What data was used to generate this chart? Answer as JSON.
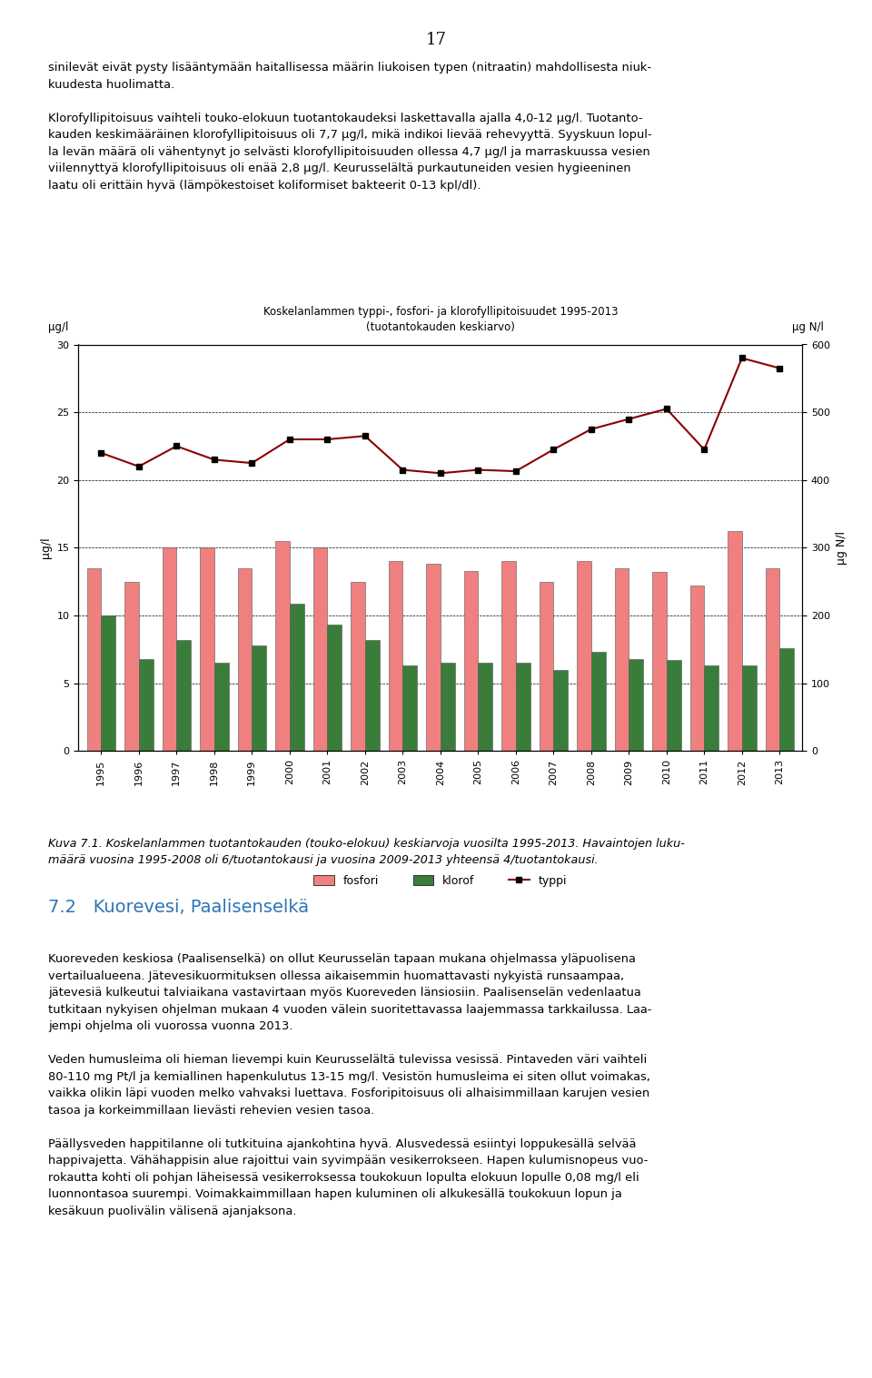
{
  "page_number": "17",
  "top_text_lines": [
    "sinilevät eivät pysty lisääntymään haitallisessa määrin liukoisen typen (nitraatin) mahdollisesta niuk-",
    "kuudesta huolimatta.",
    "",
    "Klorofyllipitoisuus vaihteli touko-elokuun tuotantokaudeksi laskettavalla ajalla 4,0-12 µg/l. Tuotanto-",
    "kauden keskimääräinen klorofyllipitoisuus oli 7,7 µg/l, mikä indikoi lievää rehevyyttä. Syyskuun lopul-",
    "la levän määrä oli vähentynyt jo selvästi klorofyllipitoisuuden ollessa 4,7 µg/l ja marraskuussa vesien",
    "viilennyttyä klorofyllipitoisuus oli enää 2,8 µg/l. Keurusselältä purkautuneiden vesien hygieeninen",
    "laatu oli erittäin hyvä (lämpökestoiset koliformiset bakteerit 0-13 kpl/dl)."
  ],
  "chart_title_line1": "Koskelanlammen typpi-, fosfori- ja klorofyllipitoisuudet 1995-2013",
  "chart_title_line2": "(tuotantokauden keskiarvo)",
  "ylabel_left": "µg/l",
  "ylabel_right": "µg N/l",
  "years": [
    1995,
    1996,
    1997,
    1998,
    1999,
    2000,
    2001,
    2002,
    2003,
    2004,
    2005,
    2006,
    2007,
    2008,
    2009,
    2010,
    2011,
    2012,
    2013
  ],
  "fosfori": [
    13.5,
    12.5,
    15.0,
    15.0,
    13.5,
    15.5,
    15.0,
    12.5,
    14.0,
    13.8,
    13.3,
    14.0,
    12.5,
    14.0,
    13.5,
    13.2,
    12.2,
    16.2,
    13.5
  ],
  "klorof": [
    10.0,
    6.8,
    8.2,
    6.5,
    7.8,
    10.9,
    9.3,
    8.2,
    6.3,
    6.5,
    6.5,
    6.5,
    6.0,
    7.3,
    6.8,
    6.7,
    6.3,
    6.3,
    7.6
  ],
  "typpi": [
    440,
    420,
    450,
    430,
    425,
    460,
    460,
    465,
    415,
    410,
    415,
    413,
    445,
    475,
    490,
    505,
    445,
    580,
    565
  ],
  "fosfori_color": "#F08080",
  "klorof_color": "#3A7D3A",
  "typpi_color": "#8B0000",
  "ylim_left": [
    0,
    30
  ],
  "ylim_right": [
    0,
    600
  ],
  "yticks_left": [
    0,
    5,
    10,
    15,
    20,
    25,
    30
  ],
  "yticks_right": [
    0,
    100,
    200,
    300,
    400,
    500,
    600
  ],
  "caption_line1": "Kuva 7.1. Koskelanlammen tuotantokauden (touko-elokuu) keskiarvoja vuosilta 1995-2013. Havaintojen luku-",
  "caption_line2": "määrä vuosina 1995-2008 oli 6/tuotantokausi ja vuosina 2009-2013 yhteensä 4/tuotantokausi.",
  "section_title": "7.2   Kuorevesi, Paalisenselkä",
  "bottom_text_lines": [
    "Kuoreveden keskiosa (Paalisenselkä) on ollut Keurusselän tapaan mukana ohjelmassa yläpuolisena",
    "vertailualueena. Jätevesikuormituksen ollessa aikaisemmin huomattavasti nykyistä runsaampaa,",
    "jätevesiä kulkeutui talviaikana vastavirtaan myös Kuoreveden länsiosiin. Paalisenselän vedenlaatua",
    "tutkitaan nykyisen ohjelman mukaan 4 vuoden välein suoritettavassa laajemmassa tarkkailussa. Laa-",
    "jempi ohjelma oli vuorossa vuonna 2013.",
    "",
    "Veden humusleima oli hieman lievempi kuin Keurusselältä tulevissa vesissä. Pintaveden väri vaihteli",
    "80-110 mg Pt/l ja kemiallinen hapenkulutus 13-15 mg/l. Vesistön humusleima ei siten ollut voimakas,",
    "vaikka olikin läpi vuoden melko vahvaksi luettava. Fosforipitoisuus oli alhaisimmillaan karujen vesien",
    "tasoa ja korkeimmillaan lievästi rehevien vesien tasoa.",
    "",
    "Päällysveden happitilanne oli tutkituina ajankohtina hyvä. Alusvedessä esiintyi loppukesällä selvää",
    "happivajetta. Vähähappisin alue rajoittui vain syvimpään vesikerrokseen. Hapen kulumisnopeus vuo-",
    "rokautta kohti oli pohjan läheisessä vesikerroksessa toukokuun lopulta elokuun lopulle 0,08 mg/l eli",
    "luonnontasoa suurempi. Voimakkaimmillaan hapen kuluminen oli alkukesällä toukokuun lopun ja",
    "kesäkuun puolivälin välisenä ajanjaksona."
  ]
}
